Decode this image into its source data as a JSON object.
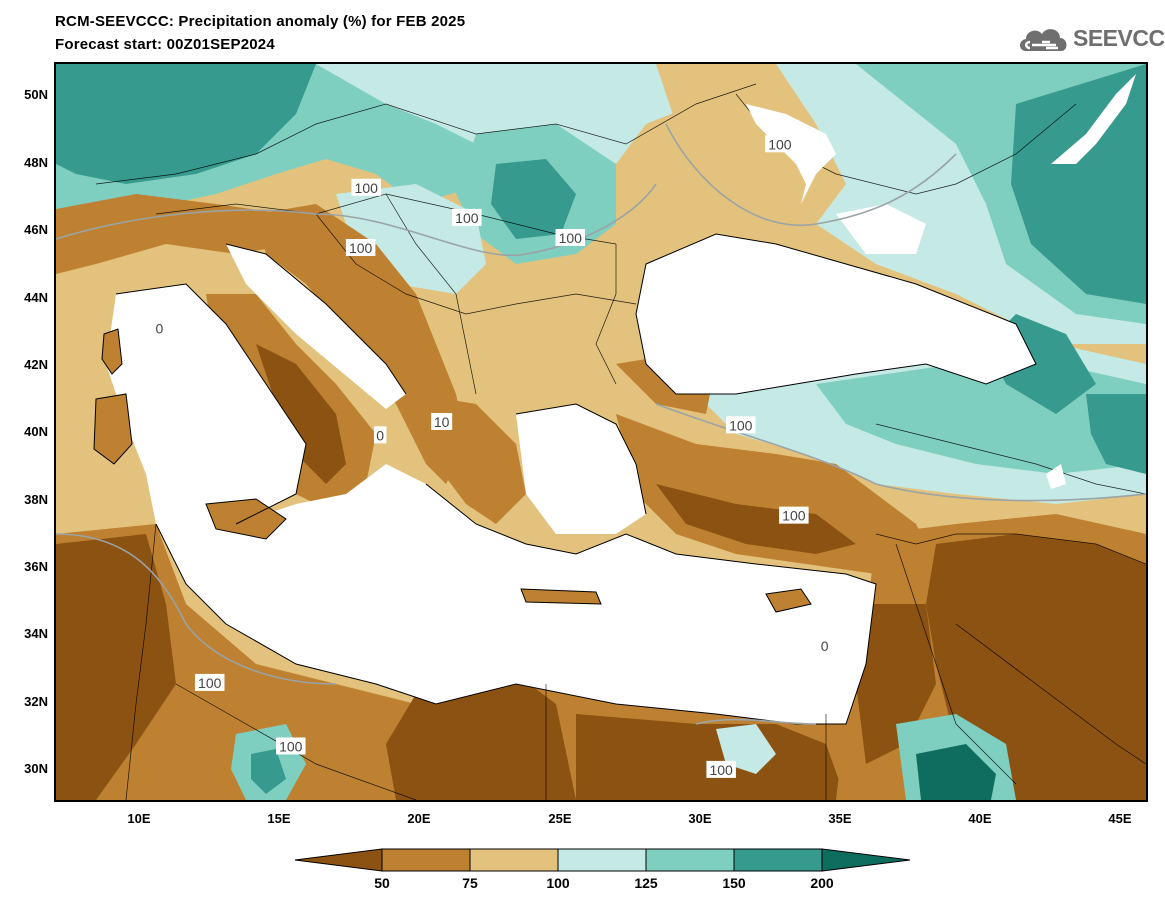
{
  "title": {
    "line1": "RCM-SEEVCCC: Precipitation anomaly (%) for FEB 2025",
    "line2": "Forecast start: 00Z01SEP2024"
  },
  "logo": {
    "text": "SEEVCCC",
    "icon": "cloud-logo-icon"
  },
  "axes": {
    "lat_labels": [
      "50N",
      "48N",
      "46N",
      "44N",
      "42N",
      "40N",
      "38N",
      "36N",
      "34N",
      "32N",
      "30N"
    ],
    "lon_labels": [
      "10E",
      "15E",
      "20E",
      "25E",
      "30E",
      "35E",
      "40E",
      "45E"
    ],
    "lat_range": [
      29,
      51
    ],
    "lon_range": [
      7,
      46
    ]
  },
  "colorbar": {
    "labels": [
      "50",
      "75",
      "100",
      "125",
      "150",
      "200"
    ],
    "colors": [
      "#8c5212",
      "#be8031",
      "#e3c27d",
      "#c5eae5",
      "#7fcfc0",
      "#379a8e",
      "#0f6d60"
    ]
  },
  "contour_labels": [
    {
      "text": "100",
      "lon": 21.7,
      "lat": 46.4
    },
    {
      "text": "100",
      "lon": 18.1,
      "lat": 47.3
    },
    {
      "text": "100",
      "lon": 17.9,
      "lat": 45.5
    },
    {
      "text": "100",
      "lon": 32.9,
      "lat": 48.6
    },
    {
      "text": "100",
      "lon": 25.4,
      "lat": 45.8
    },
    {
      "text": "100",
      "lon": 31.5,
      "lat": 40.2
    },
    {
      "text": "100",
      "lon": 33.4,
      "lat": 37.5
    },
    {
      "text": "100",
      "lon": 12.5,
      "lat": 32.5
    },
    {
      "text": "100",
      "lon": 15.4,
      "lat": 30.6
    },
    {
      "text": "100",
      "lon": 30.8,
      "lat": 29.9
    },
    {
      "text": "0",
      "lon": 10.7,
      "lat": 43.1
    },
    {
      "text": "0",
      "lon": 18.6,
      "lat": 39.9
    },
    {
      "text": "10",
      "lon": 20.8,
      "lat": 40.3
    },
    {
      "text": "0",
      "lon": 34.5,
      "lat": 33.6
    }
  ]
}
